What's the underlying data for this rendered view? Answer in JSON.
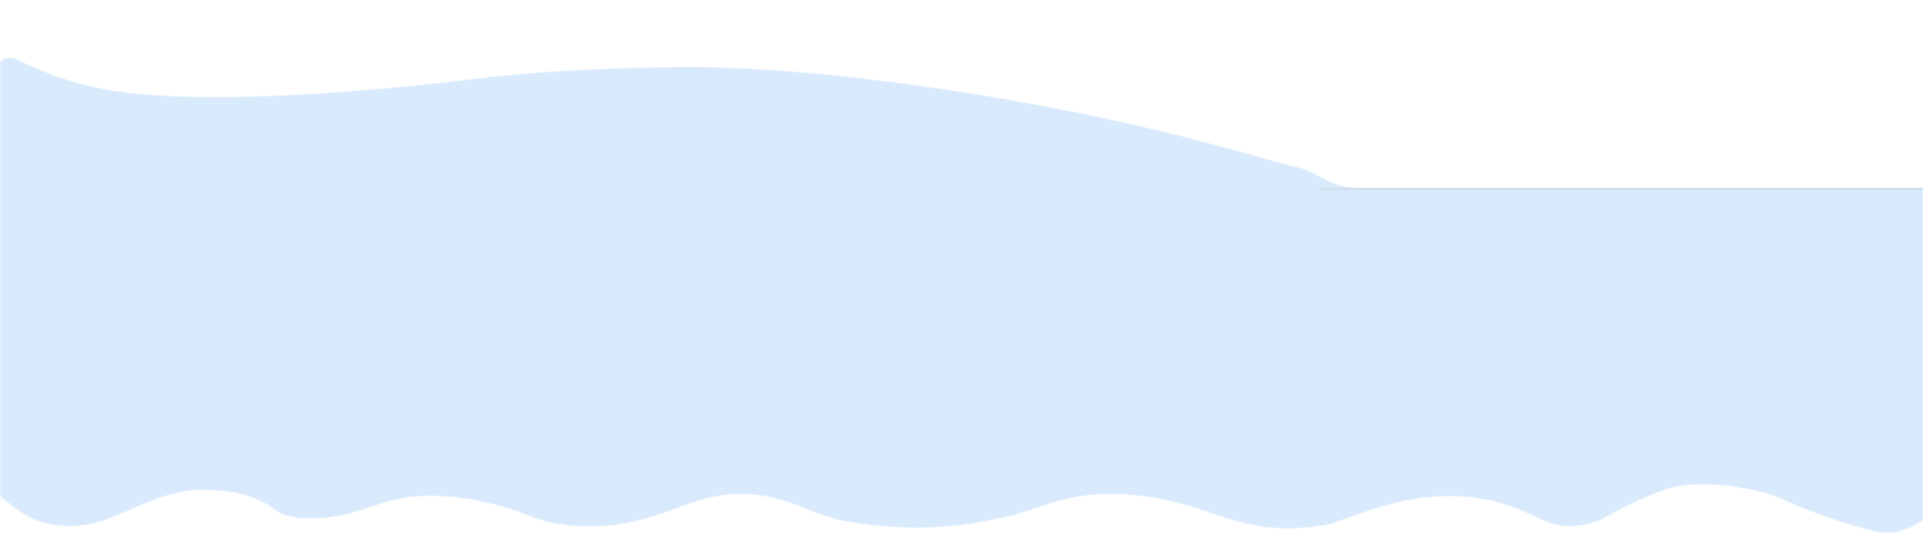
{
  "colors": {
    "background": "#ffffff",
    "shape_fill": "#d9eafc",
    "edge_line": "#cfd9e4"
  }
}
